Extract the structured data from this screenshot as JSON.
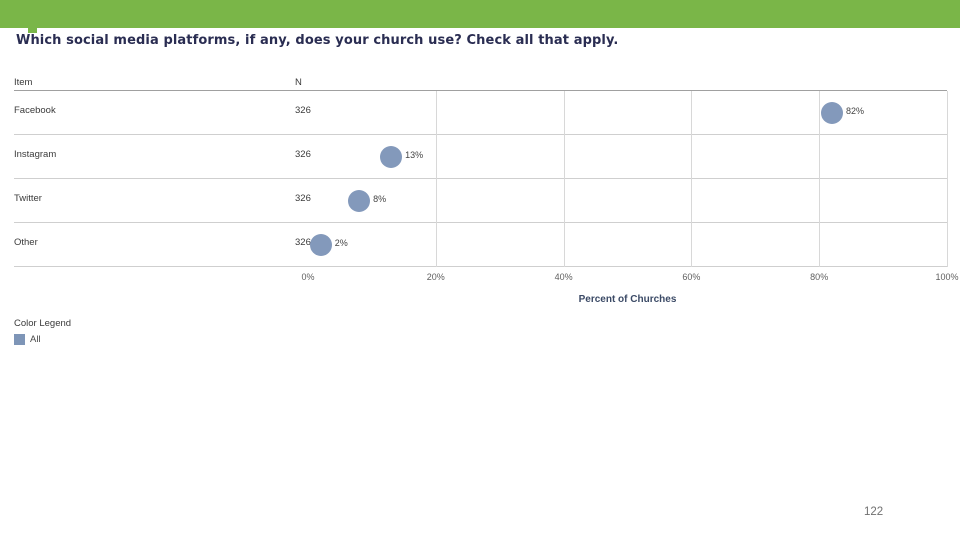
{
  "header": {
    "title": "Which social media platforms, if any, does your church use? Check all that apply."
  },
  "chart_data": {
    "type": "scatter",
    "title": "Which social media platforms, if any, does your church use? Check all that apply.",
    "columns": {
      "item": "Item",
      "n": "N"
    },
    "rows": [
      {
        "item": "Facebook",
        "n": "326",
        "value": 82,
        "label": "82%"
      },
      {
        "item": "Instagram",
        "n": "326",
        "value": 13,
        "label": "13%"
      },
      {
        "item": "Twitter",
        "n": "326",
        "value": 8,
        "label": "8%"
      },
      {
        "item": "Other",
        "n": "326",
        "value": 2,
        "label": "2%"
      }
    ],
    "x_ticks": [
      {
        "value": 0,
        "label": "0%"
      },
      {
        "value": 20,
        "label": "20%"
      },
      {
        "value": 40,
        "label": "40%"
      },
      {
        "value": 60,
        "label": "60%"
      },
      {
        "value": 80,
        "label": "80%"
      },
      {
        "value": 100,
        "label": "100%"
      }
    ],
    "xlabel": "Percent of Churches",
    "xlim": [
      0,
      100
    ],
    "grid": true,
    "legend_position": "bottom-left"
  },
  "legend": {
    "title": "Color Legend",
    "items": [
      {
        "label": "All",
        "color": "#7e95b7"
      }
    ]
  },
  "footer": {
    "page_number": "122"
  },
  "colors": {
    "top_bar": "#7ab648",
    "title_text": "#2a2d52",
    "dot": "#8399bb",
    "gridline": "#d8d8d8"
  }
}
